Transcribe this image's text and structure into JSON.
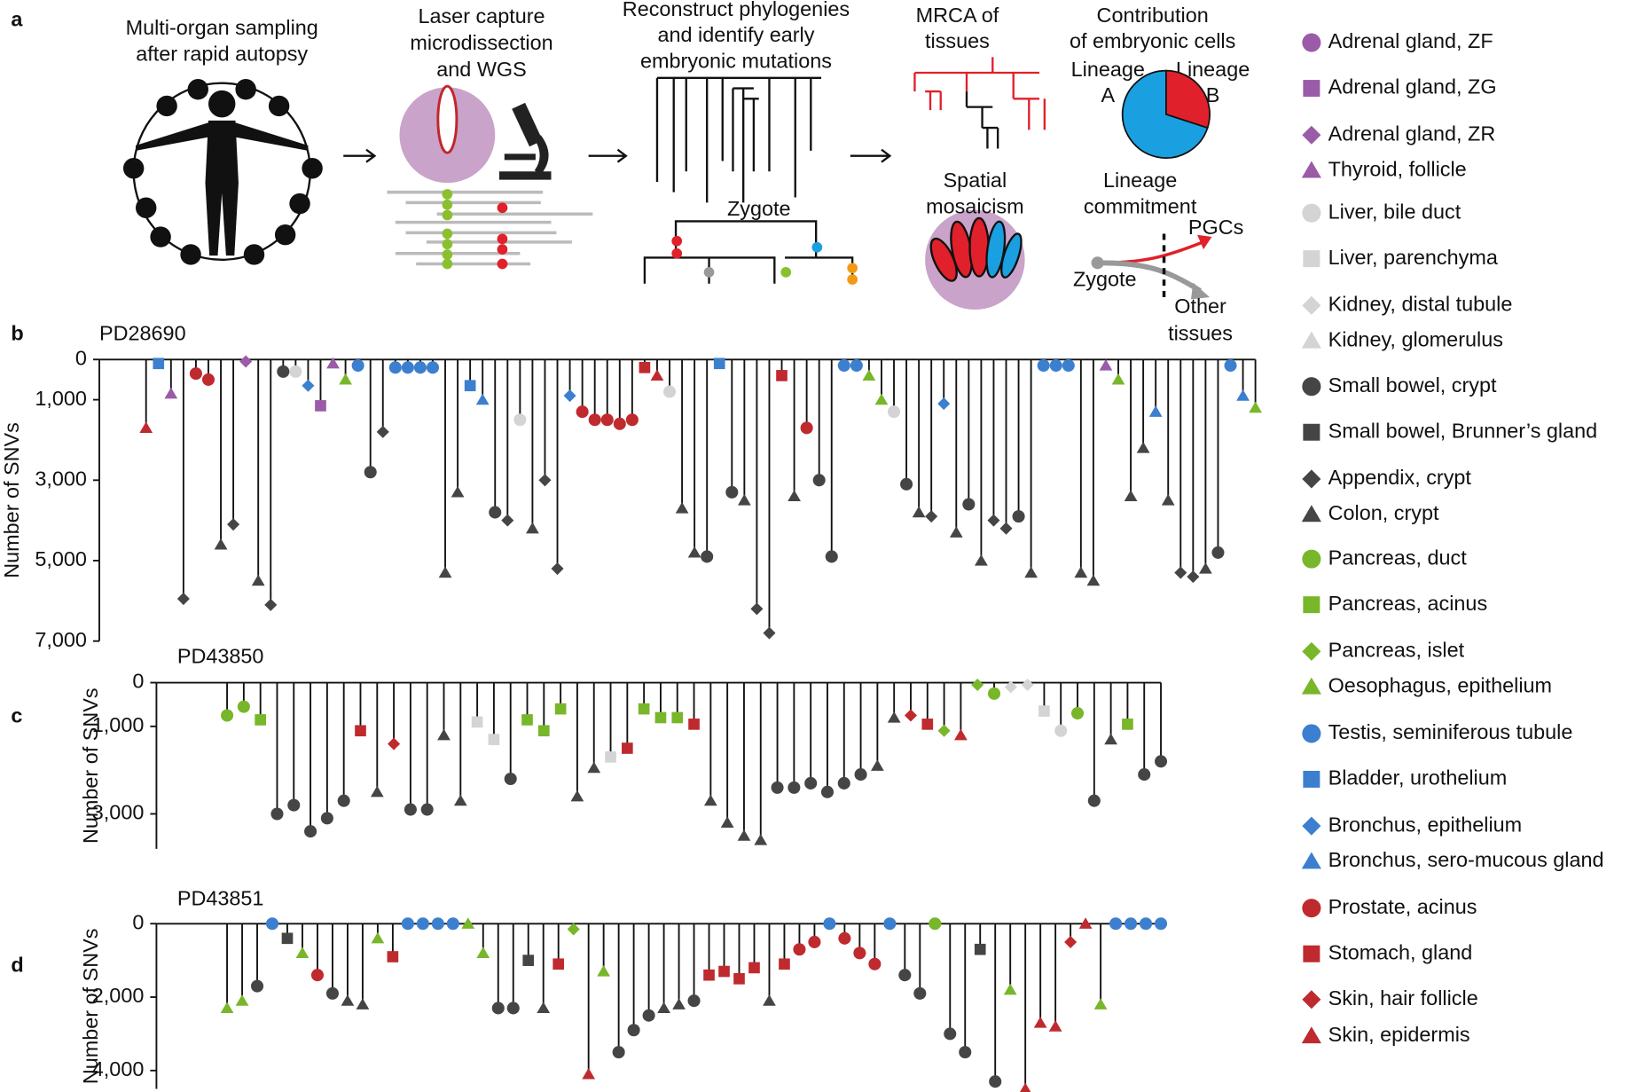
{
  "panel_labels": [
    "a",
    "b",
    "c",
    "d"
  ],
  "panel_a": {
    "sampling": [
      "Multi-organ sampling",
      "after rapid autopsy"
    ],
    "lcm": [
      "Laser capture",
      "microdissection",
      "and WGS"
    ],
    "phylogeny": [
      "Reconstruct phylogenies",
      "and identify early",
      "embryonic mutations"
    ],
    "zygote": "Zygote",
    "mrca": [
      "MRCA of",
      "tissues"
    ],
    "contribution": [
      "Contribution",
      "of embryonic cells"
    ],
    "lineage_a": [
      "Lineage",
      "A"
    ],
    "lineage_b": [
      "Lineage",
      "B"
    ],
    "spatial": [
      "Spatial",
      "mosaicism"
    ],
    "commitment": [
      "Lineage",
      "commitment"
    ],
    "pgcs": "PGCs",
    "commit_zygote": "Zygote",
    "other": [
      "Other",
      "tissues"
    ],
    "pie": {
      "type": "pie",
      "values": [
        70,
        30
      ],
      "colors": [
        "#1a9fe0",
        "#e0202a"
      ]
    }
  },
  "legend": [
    {
      "name": "Adrenal gland, ZF",
      "color": "#9a5ba8",
      "shape": "circle"
    },
    {
      "name": "Adrenal gland, ZG",
      "color": "#9a5ba8",
      "shape": "square"
    },
    {
      "name": "Adrenal gland, ZR",
      "color": "#9a5ba8",
      "shape": "diamond"
    },
    {
      "name": "Thyroid, follicle",
      "color": "#9a5ba8",
      "shape": "triangle"
    },
    {
      "name": "Liver, bile duct",
      "color": "#d4d4d4",
      "shape": "circle"
    },
    {
      "name": "Liver, parenchyma",
      "color": "#d4d4d4",
      "shape": "square"
    },
    {
      "name": "Kidney, distal tubule",
      "color": "#d4d4d4",
      "shape": "diamond"
    },
    {
      "name": "Kidney, glomerulus",
      "color": "#d4d4d4",
      "shape": "triangle"
    },
    {
      "name": "Small bowel, crypt",
      "color": "#454545",
      "shape": "circle"
    },
    {
      "name": "Small bowel, Brunner’s gland",
      "color": "#454545",
      "shape": "square"
    },
    {
      "name": "Appendix, crypt",
      "color": "#454545",
      "shape": "diamond"
    },
    {
      "name": "Colon, crypt",
      "color": "#454545",
      "shape": "triangle"
    },
    {
      "name": "Pancreas, duct",
      "color": "#78b62a",
      "shape": "circle"
    },
    {
      "name": "Pancreas, acinus",
      "color": "#78b62a",
      "shape": "square"
    },
    {
      "name": "Pancreas, islet",
      "color": "#78b62a",
      "shape": "diamond"
    },
    {
      "name": "Oesophagus, epithelium",
      "color": "#78b62a",
      "shape": "triangle"
    },
    {
      "name": "Testis, seminiferous tubule",
      "color": "#3c7fcf",
      "shape": "circle"
    },
    {
      "name": "Bladder, urothelium",
      "color": "#3c7fcf",
      "shape": "square"
    },
    {
      "name": "Bronchus, epithelium",
      "color": "#3c7fcf",
      "shape": "diamond"
    },
    {
      "name": "Bronchus, sero-mucous gland",
      "color": "#3c7fcf",
      "shape": "triangle"
    },
    {
      "name": "Prostate, acinus",
      "color": "#bf2a2e",
      "shape": "circle"
    },
    {
      "name": "Stomach, gland",
      "color": "#bf2a2e",
      "shape": "square"
    },
    {
      "name": "Skin, hair follicle",
      "color": "#bf2a2e",
      "shape": "diamond"
    },
    {
      "name": "Skin, epidermis",
      "color": "#bf2a2e",
      "shape": "triangle"
    }
  ],
  "chart_data": [
    {
      "type": "tree",
      "title": "PD28690",
      "ylabel": "Number of SNVs",
      "ylim": [
        0,
        7000
      ],
      "yticks": [
        0,
        {
          "value": 1000,
          "label": "1,000"
        },
        {
          "value": 3000,
          "label": "3,000"
        },
        {
          "value": 5000,
          "label": "5,000"
        },
        {
          "value": 7000,
          "label": "7,000"
        }
      ],
      "leaves": [
        [
          23,
          1700
        ],
        [
          17,
          100
        ],
        [
          3,
          850
        ],
        [
          10,
          5950
        ],
        [
          20,
          350
        ],
        [
          20,
          500
        ],
        [
          11,
          4600
        ],
        [
          10,
          4100
        ],
        [
          2,
          50
        ],
        [
          11,
          5500
        ],
        [
          10,
          6100
        ],
        [
          8,
          300
        ],
        [
          4,
          300
        ],
        [
          18,
          650
        ],
        [
          1,
          1150
        ],
        [
          3,
          100
        ],
        [
          15,
          500
        ],
        [
          16,
          150
        ],
        [
          8,
          2800
        ],
        [
          10,
          1800
        ],
        [
          16,
          200
        ],
        [
          16,
          200
        ],
        [
          16,
          200
        ],
        [
          16,
          200
        ],
        [
          11,
          5300
        ],
        [
          11,
          3300
        ],
        [
          17,
          650
        ],
        [
          19,
          1000
        ],
        [
          8,
          3800
        ],
        [
          10,
          4000
        ],
        [
          4,
          1500
        ],
        [
          11,
          4200
        ],
        [
          10,
          3000
        ],
        [
          10,
          5200
        ],
        [
          18,
          900
        ],
        [
          20,
          1300
        ],
        [
          20,
          1500
        ],
        [
          20,
          1500
        ],
        [
          20,
          1600
        ],
        [
          20,
          1500
        ],
        [
          21,
          200
        ],
        [
          23,
          400
        ],
        [
          4,
          800
        ],
        [
          11,
          3700
        ],
        [
          11,
          4800
        ],
        [
          8,
          4900
        ],
        [
          17,
          100
        ],
        [
          8,
          3300
        ],
        [
          11,
          3500
        ],
        [
          10,
          6200
        ],
        [
          10,
          6800
        ],
        [
          21,
          400
        ],
        [
          11,
          3400
        ],
        [
          20,
          1700
        ],
        [
          8,
          3000
        ],
        [
          8,
          4900
        ],
        [
          16,
          150
        ],
        [
          16,
          150
        ],
        [
          15,
          400
        ],
        [
          15,
          1000
        ],
        [
          4,
          1300
        ],
        [
          8,
          3100
        ],
        [
          11,
          3800
        ],
        [
          10,
          3900
        ],
        [
          18,
          1100
        ],
        [
          11,
          4300
        ],
        [
          8,
          3600
        ],
        [
          11,
          5000
        ],
        [
          10,
          4000
        ],
        [
          10,
          4200
        ],
        [
          8,
          3900
        ],
        [
          11,
          5300
        ],
        [
          16,
          150
        ],
        [
          16,
          150
        ],
        [
          16,
          150
        ],
        [
          11,
          5300
        ],
        [
          11,
          5500
        ],
        [
          3,
          150
        ],
        [
          15,
          500
        ],
        [
          11,
          3400
        ],
        [
          11,
          2200
        ],
        [
          19,
          1300
        ],
        [
          11,
          3500
        ],
        [
          10,
          5300
        ],
        [
          10,
          5400
        ],
        [
          11,
          5200
        ],
        [
          8,
          4800
        ],
        [
          16,
          150
        ],
        [
          19,
          900
        ],
        [
          15,
          1200
        ]
      ]
    },
    {
      "type": "tree",
      "title": "PD43850",
      "ylabel": "Number of SNVs",
      "ylim": [
        0,
        3800
      ],
      "yticks": [
        0,
        {
          "value": 1000,
          "label": "1,000"
        },
        {
          "value": 3000,
          "label": "3,000"
        }
      ],
      "leaves": [
        [
          12,
          750
        ],
        [
          12,
          550
        ],
        [
          13,
          850
        ],
        [
          8,
          3000
        ],
        [
          8,
          2800
        ],
        [
          8,
          3400
        ],
        [
          8,
          3100
        ],
        [
          8,
          2700
        ],
        [
          21,
          1100
        ],
        [
          11,
          2500
        ],
        [
          22,
          1400
        ],
        [
          8,
          2900
        ],
        [
          8,
          2900
        ],
        [
          11,
          1200
        ],
        [
          11,
          2700
        ],
        [
          5,
          900
        ],
        [
          5,
          1300
        ],
        [
          8,
          2200
        ],
        [
          13,
          850
        ],
        [
          13,
          1100
        ],
        [
          13,
          600
        ],
        [
          11,
          2600
        ],
        [
          11,
          1950
        ],
        [
          5,
          1700
        ],
        [
          21,
          1500
        ],
        [
          13,
          600
        ],
        [
          13,
          800
        ],
        [
          13,
          800
        ],
        [
          21,
          950
        ],
        [
          11,
          2700
        ],
        [
          11,
          3200
        ],
        [
          11,
          3500
        ],
        [
          11,
          3600
        ],
        [
          8,
          2400
        ],
        [
          8,
          2400
        ],
        [
          8,
          2300
        ],
        [
          8,
          2500
        ],
        [
          8,
          2300
        ],
        [
          8,
          2100
        ],
        [
          11,
          1900
        ],
        [
          11,
          800
        ],
        [
          22,
          750
        ],
        [
          21,
          950
        ],
        [
          14,
          1100
        ],
        [
          23,
          1200
        ],
        [
          14,
          50
        ],
        [
          12,
          250
        ],
        [
          6,
          100
        ],
        [
          6,
          50
        ],
        [
          5,
          650
        ],
        [
          4,
          1100
        ],
        [
          12,
          700
        ],
        [
          8,
          2700
        ],
        [
          11,
          1300
        ],
        [
          13,
          950
        ],
        [
          8,
          2100
        ],
        [
          8,
          1800
        ]
      ]
    },
    {
      "type": "tree",
      "title": "PD43851",
      "ylabel": "Number of SNVs",
      "ylim": [
        0,
        4500
      ],
      "yticks": [
        0,
        {
          "value": 2000,
          "label": "2,000"
        },
        {
          "value": 4000,
          "label": "4,000"
        }
      ],
      "leaves": [
        [
          15,
          2300
        ],
        [
          15,
          2100
        ],
        [
          8,
          1700
        ],
        [
          16,
          0
        ],
        [
          9,
          400
        ],
        [
          15,
          800
        ],
        [
          20,
          1400
        ],
        [
          8,
          1900
        ],
        [
          11,
          2100
        ],
        [
          11,
          2200
        ],
        [
          15,
          400
        ],
        [
          21,
          900
        ],
        [
          16,
          0
        ],
        [
          16,
          0
        ],
        [
          16,
          0
        ],
        [
          16,
          0
        ],
        [
          15,
          0
        ],
        [
          15,
          800
        ],
        [
          8,
          2300
        ],
        [
          8,
          2300
        ],
        [
          9,
          1000
        ],
        [
          11,
          2300
        ],
        [
          21,
          1100
        ],
        [
          14,
          150
        ],
        [
          23,
          4100
        ],
        [
          15,
          1300
        ],
        [
          8,
          3500
        ],
        [
          8,
          2900
        ],
        [
          8,
          2500
        ],
        [
          11,
          2300
        ],
        [
          11,
          2200
        ],
        [
          8,
          2100
        ],
        [
          21,
          1400
        ],
        [
          21,
          1300
        ],
        [
          21,
          1500
        ],
        [
          21,
          1200
        ],
        [
          11,
          2100
        ],
        [
          21,
          1100
        ],
        [
          20,
          700
        ],
        [
          20,
          500
        ],
        [
          16,
          0
        ],
        [
          20,
          400
        ],
        [
          20,
          800
        ],
        [
          20,
          1100
        ],
        [
          16,
          0
        ],
        [
          8,
          1400
        ],
        [
          8,
          1900
        ],
        [
          12,
          0
        ],
        [
          8,
          3000
        ],
        [
          8,
          3500
        ],
        [
          9,
          700
        ],
        [
          8,
          4300
        ],
        [
          15,
          1800
        ],
        [
          23,
          4500
        ],
        [
          23,
          2700
        ],
        [
          23,
          2800
        ],
        [
          22,
          500
        ],
        [
          23,
          0
        ],
        [
          15,
          2200
        ],
        [
          16,
          0
        ],
        [
          16,
          0
        ],
        [
          16,
          0
        ],
        [
          16,
          0
        ]
      ]
    }
  ]
}
